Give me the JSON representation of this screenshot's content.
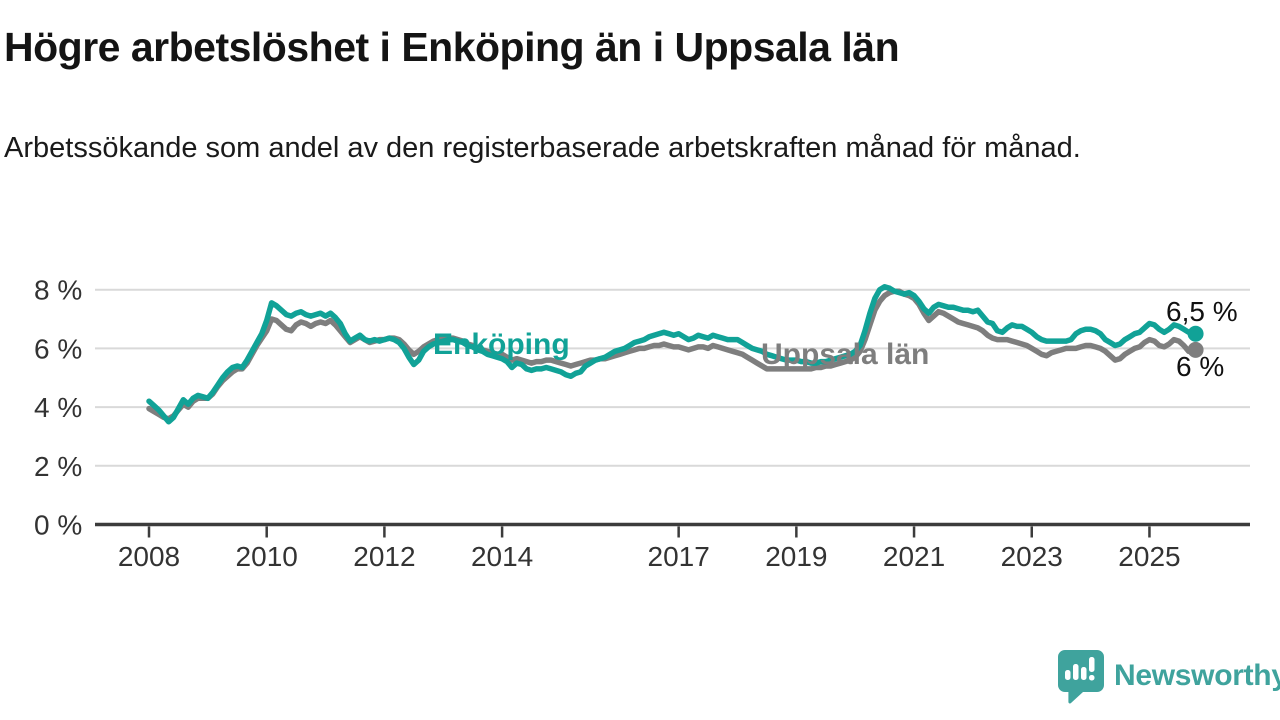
{
  "title": "Högre arbetslöshet i Enköping än i Uppsala län",
  "subtitle": "Arbetssökande som andel av den registerbaserade arbetskraften månad för månad.",
  "colors": {
    "accent_teal": "#11a297",
    "series_gray": "#7e7e7e",
    "gridline": "#d9d9d9",
    "axis": "#3c3c3c",
    "text": "#1a1a1a",
    "logo_teal": "#3fa39d"
  },
  "chart_data": {
    "type": "line",
    "title": "",
    "xlabel": "",
    "ylabel": "",
    "x_start_year": 2008,
    "x_step_months": 1,
    "x_end": "2025-10",
    "ylim": [
      0,
      8.6
    ],
    "grid": true,
    "legend": "inline-labels",
    "y_ticks": [
      {
        "value": 0,
        "label": "0 %"
      },
      {
        "value": 2,
        "label": "2 %"
      },
      {
        "value": 4,
        "label": "4 %"
      },
      {
        "value": 6,
        "label": "6 %"
      },
      {
        "value": 8,
        "label": "8 %"
      }
    ],
    "x_ticks": [
      2008,
      2010,
      2012,
      2014,
      2017,
      2019,
      2021,
      2023,
      2025
    ],
    "series": [
      {
        "name": "Enköping",
        "color": "#11a297",
        "end_label": "6,5 %",
        "end_value": 6.5,
        "values": [
          4.2,
          4.05,
          3.9,
          3.7,
          3.5,
          3.65,
          3.95,
          4.25,
          4.1,
          4.3,
          4.4,
          4.35,
          4.3,
          4.5,
          4.75,
          5.0,
          5.2,
          5.35,
          5.4,
          5.35,
          5.6,
          5.9,
          6.2,
          6.5,
          6.95,
          7.55,
          7.45,
          7.3,
          7.15,
          7.1,
          7.2,
          7.25,
          7.15,
          7.1,
          7.15,
          7.2,
          7.1,
          7.2,
          7.05,
          6.85,
          6.5,
          6.25,
          6.35,
          6.45,
          6.3,
          6.25,
          6.3,
          6.25,
          6.3,
          6.35,
          6.3,
          6.2,
          6.0,
          5.7,
          5.45,
          5.6,
          5.9,
          6.05,
          6.15,
          6.2,
          6.25,
          6.3,
          6.3,
          6.25,
          6.2,
          6.1,
          6.05,
          5.95,
          5.9,
          5.8,
          5.75,
          5.7,
          5.65,
          5.55,
          5.35,
          5.5,
          5.45,
          5.3,
          5.25,
          5.3,
          5.3,
          5.35,
          5.3,
          5.25,
          5.2,
          5.1,
          5.05,
          5.15,
          5.2,
          5.4,
          5.5,
          5.6,
          5.65,
          5.7,
          5.8,
          5.9,
          5.95,
          6.0,
          6.1,
          6.2,
          6.25,
          6.3,
          6.4,
          6.45,
          6.5,
          6.55,
          6.5,
          6.45,
          6.5,
          6.4,
          6.3,
          6.35,
          6.45,
          6.4,
          6.35,
          6.45,
          6.4,
          6.35,
          6.3,
          6.3,
          6.3,
          6.2,
          6.1,
          6.0,
          5.95,
          5.9,
          5.8,
          5.75,
          5.7,
          5.65,
          5.6,
          5.6,
          5.6,
          5.55,
          5.55,
          5.5,
          5.5,
          5.55,
          5.55,
          5.6,
          5.65,
          5.7,
          5.75,
          5.8,
          5.9,
          6.1,
          6.6,
          7.2,
          7.7,
          8.0,
          8.1,
          8.05,
          7.95,
          7.9,
          7.85,
          7.9,
          7.8,
          7.6,
          7.35,
          7.2,
          7.4,
          7.5,
          7.45,
          7.4,
          7.4,
          7.35,
          7.3,
          7.3,
          7.25,
          7.3,
          7.1,
          6.9,
          6.85,
          6.6,
          6.55,
          6.7,
          6.8,
          6.75,
          6.75,
          6.65,
          6.55,
          6.4,
          6.3,
          6.25,
          6.25,
          6.25,
          6.25,
          6.25,
          6.3,
          6.5,
          6.6,
          6.65,
          6.65,
          6.6,
          6.5,
          6.3,
          6.2,
          6.1,
          6.15,
          6.3,
          6.4,
          6.5,
          6.55,
          6.7,
          6.85,
          6.8,
          6.65,
          6.55,
          6.65,
          6.8,
          6.75,
          6.65,
          6.55,
          6.5
        ]
      },
      {
        "name": "Uppsala län",
        "color": "#7e7e7e",
        "end_label": "6 %",
        "end_value": 6.0,
        "values": [
          3.95,
          3.85,
          3.75,
          3.65,
          3.6,
          3.7,
          3.9,
          4.1,
          4.0,
          4.2,
          4.3,
          4.3,
          4.3,
          4.45,
          4.7,
          4.9,
          5.05,
          5.2,
          5.3,
          5.3,
          5.5,
          5.8,
          6.1,
          6.35,
          6.6,
          7.0,
          6.95,
          6.8,
          6.65,
          6.6,
          6.8,
          6.9,
          6.85,
          6.75,
          6.85,
          6.9,
          6.85,
          6.95,
          6.8,
          6.6,
          6.4,
          6.2,
          6.3,
          6.4,
          6.3,
          6.2,
          6.25,
          6.3,
          6.3,
          6.35,
          6.35,
          6.3,
          6.15,
          5.95,
          5.8,
          5.9,
          6.05,
          6.15,
          6.25,
          6.3,
          6.35,
          6.35,
          6.35,
          6.3,
          6.25,
          6.15,
          6.1,
          6.0,
          5.95,
          5.9,
          5.85,
          5.8,
          5.8,
          5.7,
          5.6,
          5.65,
          5.6,
          5.55,
          5.5,
          5.55,
          5.55,
          5.6,
          5.6,
          5.55,
          5.5,
          5.45,
          5.4,
          5.45,
          5.5,
          5.55,
          5.6,
          5.6,
          5.65,
          5.65,
          5.7,
          5.75,
          5.8,
          5.85,
          5.9,
          5.95,
          6.0,
          6.0,
          6.05,
          6.1,
          6.1,
          6.15,
          6.1,
          6.05,
          6.05,
          6.0,
          5.95,
          6.0,
          6.05,
          6.05,
          6.0,
          6.1,
          6.05,
          6.0,
          5.95,
          5.9,
          5.85,
          5.8,
          5.7,
          5.6,
          5.5,
          5.4,
          5.3,
          5.3,
          5.3,
          5.3,
          5.3,
          5.3,
          5.3,
          5.3,
          5.3,
          5.3,
          5.35,
          5.35,
          5.4,
          5.4,
          5.45,
          5.5,
          5.55,
          5.6,
          5.7,
          5.9,
          6.3,
          6.8,
          7.3,
          7.6,
          7.8,
          7.9,
          7.95,
          7.95,
          7.85,
          7.8,
          7.7,
          7.5,
          7.2,
          6.95,
          7.1,
          7.25,
          7.2,
          7.1,
          7.0,
          6.9,
          6.85,
          6.8,
          6.75,
          6.7,
          6.6,
          6.45,
          6.35,
          6.3,
          6.3,
          6.3,
          6.25,
          6.2,
          6.15,
          6.1,
          6.0,
          5.9,
          5.8,
          5.75,
          5.85,
          5.9,
          5.95,
          6.0,
          6.0,
          6.0,
          6.05,
          6.1,
          6.1,
          6.05,
          6.0,
          5.9,
          5.75,
          5.6,
          5.65,
          5.8,
          5.9,
          6.0,
          6.05,
          6.2,
          6.3,
          6.25,
          6.1,
          6.05,
          6.15,
          6.3,
          6.25,
          6.1,
          5.9,
          5.95
        ]
      }
    ]
  },
  "logo": {
    "text": "Newsworthy",
    "icon": "newsworthy-bubble-chart-icon"
  }
}
